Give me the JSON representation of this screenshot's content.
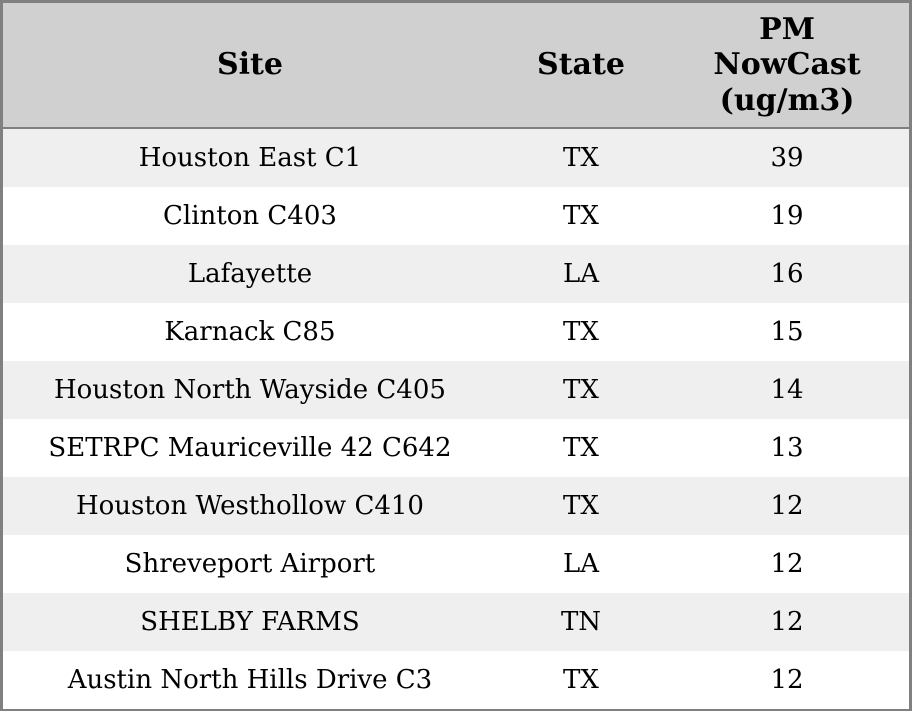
{
  "table": {
    "columns": [
      {
        "label": "Site"
      },
      {
        "label": "State"
      },
      {
        "label": "PM NowCast (ug/m3)"
      }
    ],
    "rows": [
      {
        "site": "Houston East C1",
        "state": "TX",
        "pm_nowcast": "39"
      },
      {
        "site": "Clinton C403",
        "state": "TX",
        "pm_nowcast": "19"
      },
      {
        "site": "Lafayette",
        "state": "LA",
        "pm_nowcast": "16"
      },
      {
        "site": "Karnack C85",
        "state": "TX",
        "pm_nowcast": "15"
      },
      {
        "site": "Houston North Wayside C405",
        "state": "TX",
        "pm_nowcast": "14"
      },
      {
        "site": "SETRPC Mauriceville 42 C642",
        "state": "TX",
        "pm_nowcast": "13"
      },
      {
        "site": "Houston Westhollow C410",
        "state": "TX",
        "pm_nowcast": "12"
      },
      {
        "site": "Shreveport Airport",
        "state": "LA",
        "pm_nowcast": "12"
      },
      {
        "site": "SHELBY FARMS",
        "state": "TN",
        "pm_nowcast": "12"
      },
      {
        "site": "Austin North Hills Drive C3",
        "state": "TX",
        "pm_nowcast": "12"
      }
    ],
    "colors": {
      "header_bg": "#d0d0d0",
      "border": "#808080",
      "row_odd_bg": "#efefef",
      "row_even_bg": "#ffffff",
      "text": "#000000"
    }
  }
}
